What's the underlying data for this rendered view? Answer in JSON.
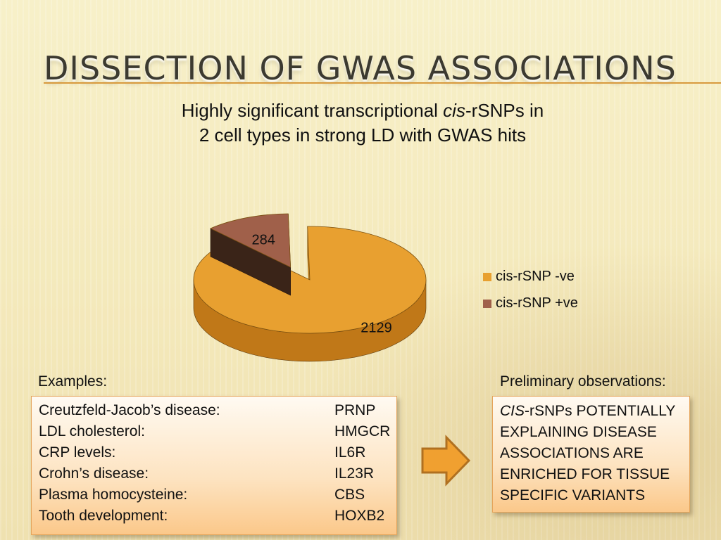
{
  "slide": {
    "title": "Dissection of GWAS Associations"
  },
  "chart_data": {
    "type": "pie",
    "title_parts": [
      "Highly significant transcriptional ",
      "cis",
      "-rSNPs in 2 cell types in strong LD with GWAS hits"
    ],
    "slices": [
      {
        "name": "cis-rSNP -ve",
        "value": 2129,
        "label": "2129",
        "color": "#e8a030",
        "side_color": "#c07818"
      },
      {
        "name": "cis-rSNP +ve",
        "value": 284,
        "label": "284",
        "color": "#a0604a",
        "side_color": "#6a3a2a"
      }
    ],
    "legend_placement": "right",
    "exploded": "cis-rSNP +ve"
  },
  "examples": {
    "label": "Examples:",
    "rows": [
      {
        "trait": "Creutzfeld-Jacob’s disease:",
        "gene": "PRNP"
      },
      {
        "trait": "LDL cholesterol:",
        "gene": "HMGCR"
      },
      {
        "trait": "CRP levels:",
        "gene": "IL6R"
      },
      {
        "trait": "Crohn’s disease:",
        "gene": "IL23R"
      },
      {
        "trait": "Plasma homocysteine:",
        "gene": "CBS"
      },
      {
        "trait": "Tooth development:",
        "gene": "HOXB2"
      }
    ]
  },
  "observations": {
    "label": "Preliminary observations:",
    "text_italic": "CIS",
    "text_rest": "-rSNPs POTENTIALLY EXPLAINING DISEASE ASSOCIATIONS ARE ENRICHED FOR TISSUE SPECIFIC VARIANTS"
  },
  "colors": {
    "accent_rule": "#d89a3e",
    "arrow_fill": "#f0a030",
    "arrow_stroke": "#b07020"
  }
}
